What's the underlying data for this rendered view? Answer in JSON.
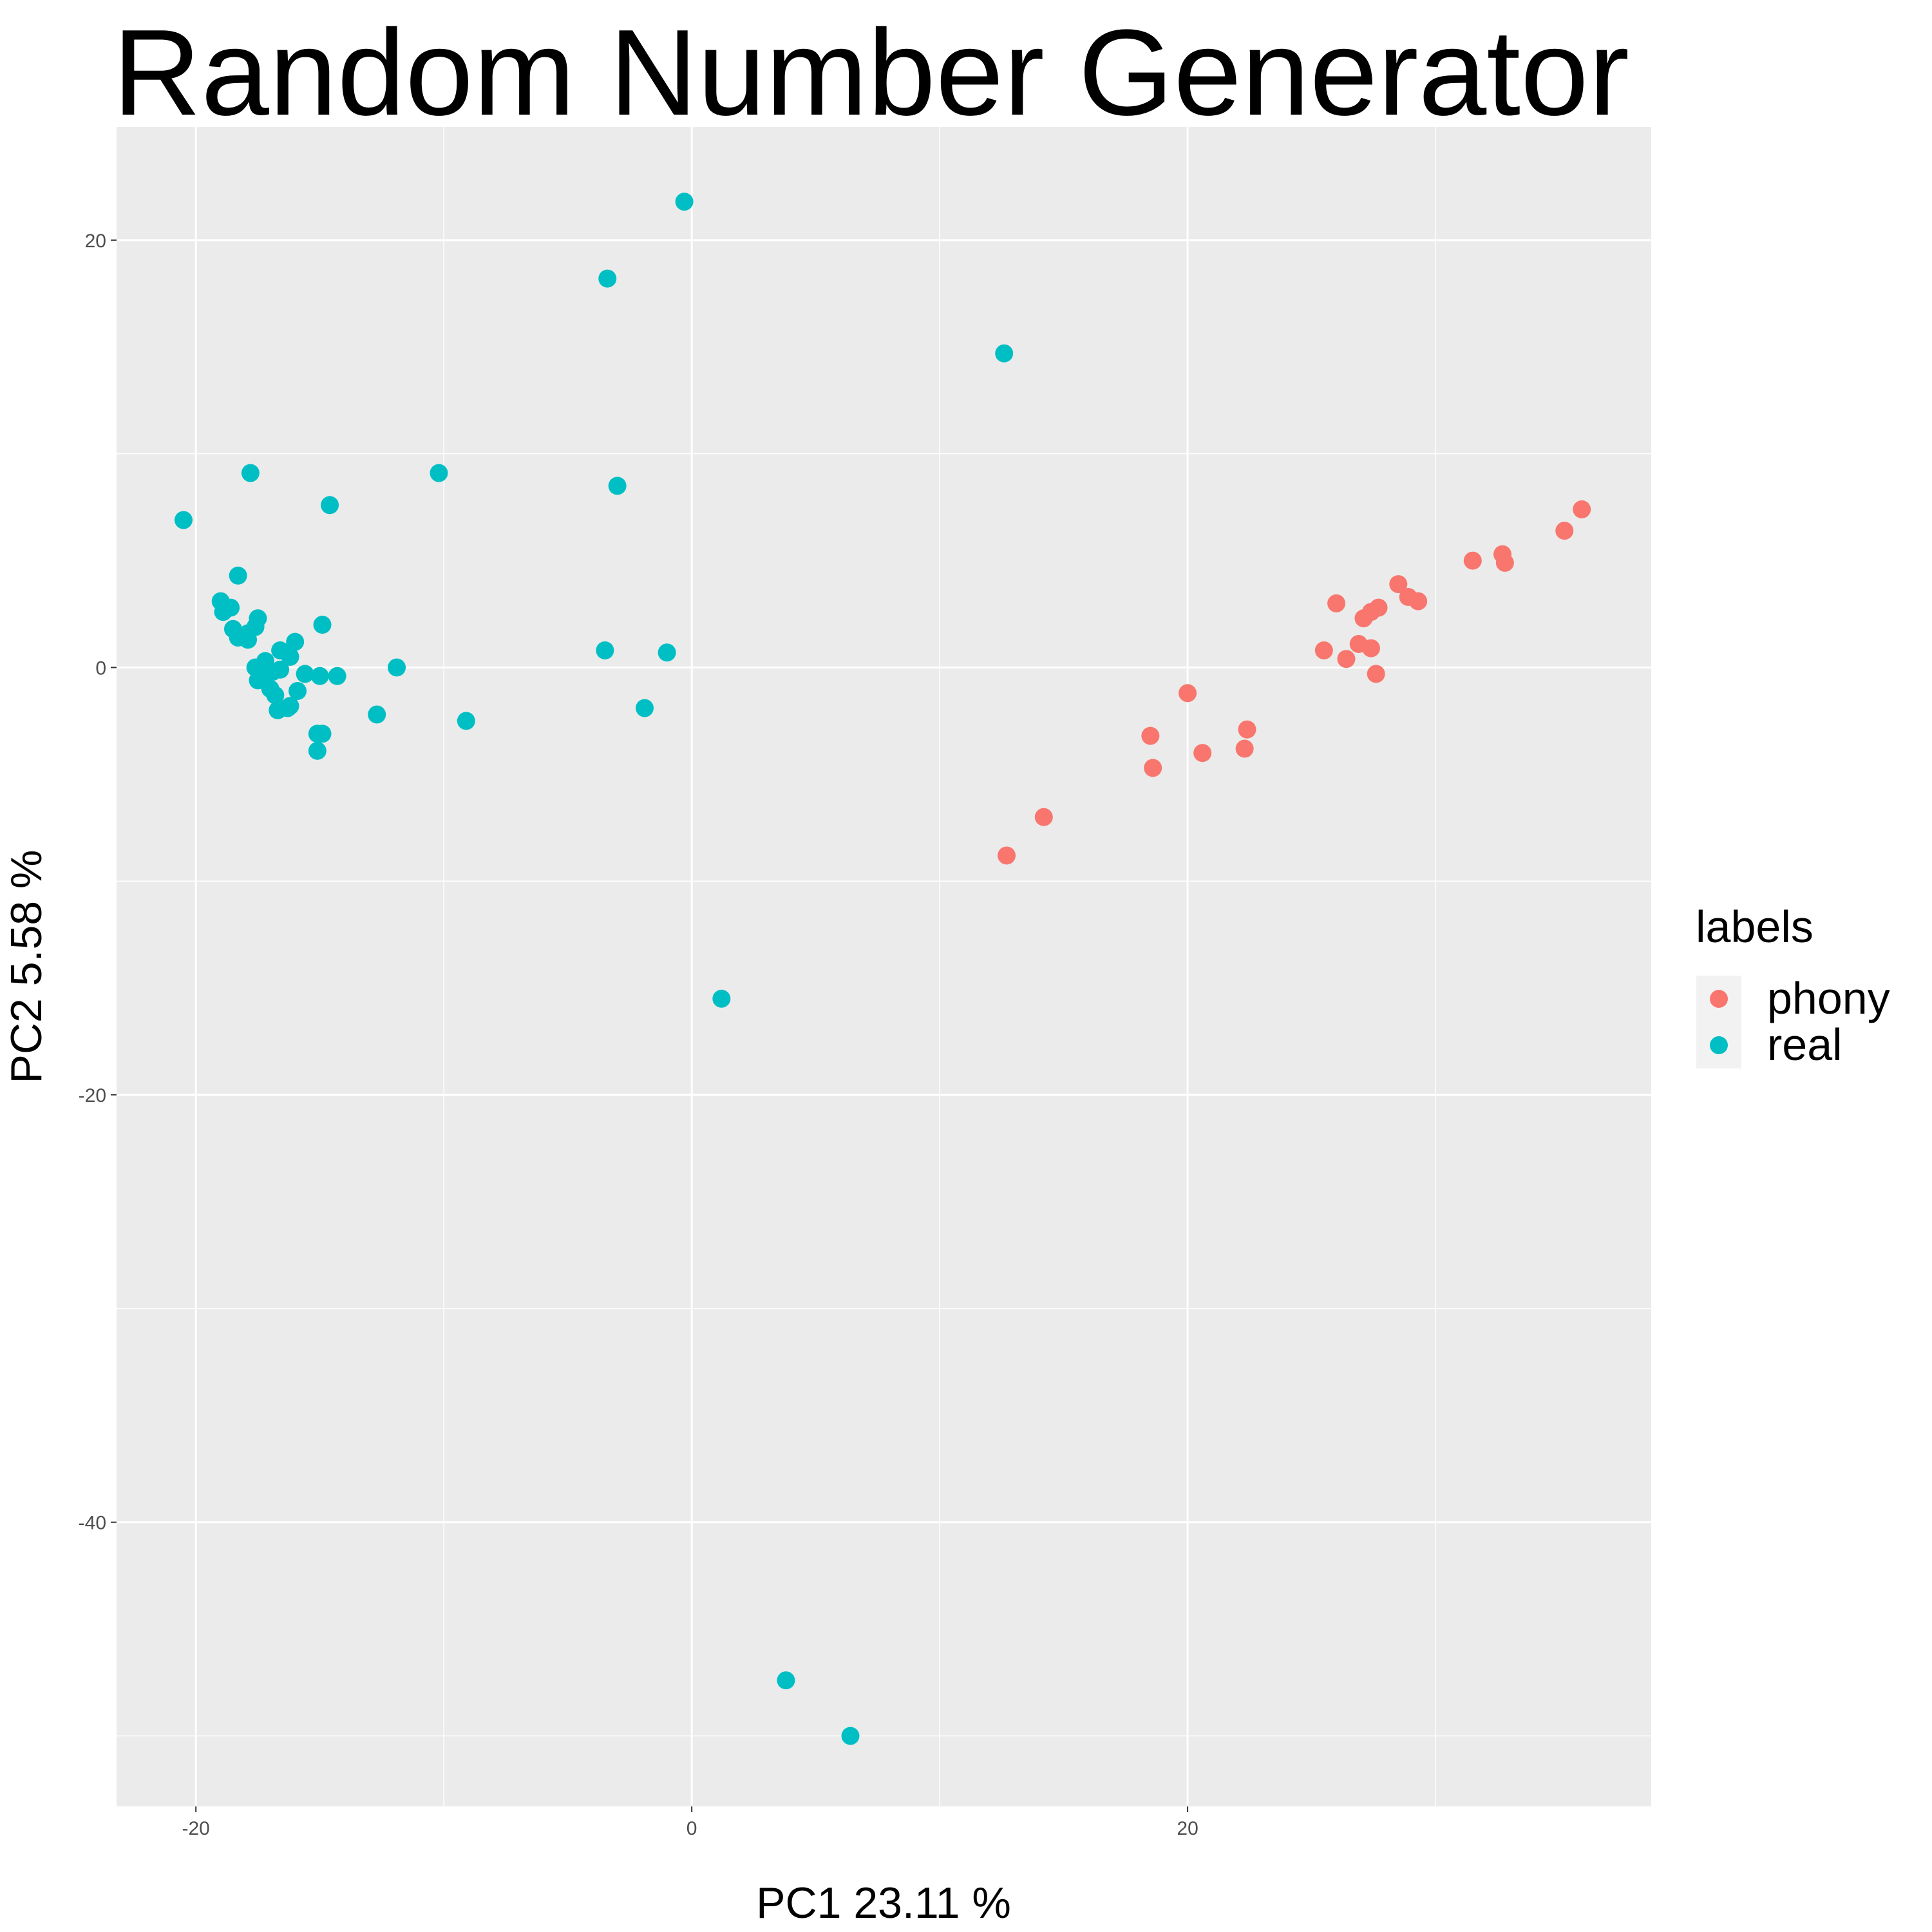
{
  "chart_data": {
    "type": "scatter",
    "title": "Random Number Generator",
    "xlabel": "PC1  23.11 %",
    "ylabel": "PC2  5.58 %",
    "xlim": [
      -23.2,
      38.7
    ],
    "ylim": [
      -53.3,
      25.3
    ],
    "x_ticks": [
      -20,
      0,
      20
    ],
    "y_ticks": [
      -40,
      -20,
      0,
      20
    ],
    "grid": true,
    "legend": {
      "title": "labels",
      "position": "right"
    },
    "series": [
      {
        "name": "phony",
        "color": "#F8766D",
        "points": [
          [
            12.7,
            -8.8
          ],
          [
            14.2,
            -7.0
          ],
          [
            18.5,
            -3.2
          ],
          [
            18.6,
            -4.7
          ],
          [
            20.0,
            -1.2
          ],
          [
            20.6,
            -4.0
          ],
          [
            22.3,
            -3.8
          ],
          [
            22.4,
            -2.9
          ],
          [
            25.5,
            0.8
          ],
          [
            26.0,
            3.0
          ],
          [
            26.4,
            0.4
          ],
          [
            26.9,
            1.1
          ],
          [
            27.1,
            2.3
          ],
          [
            27.4,
            2.6
          ],
          [
            27.4,
            0.9
          ],
          [
            27.6,
            -0.3
          ],
          [
            27.7,
            2.8
          ],
          [
            28.5,
            3.9
          ],
          [
            28.9,
            3.3
          ],
          [
            29.3,
            3.1
          ],
          [
            31.5,
            5.0
          ],
          [
            32.7,
            5.3
          ],
          [
            32.8,
            4.9
          ],
          [
            35.2,
            6.4
          ],
          [
            35.9,
            7.4
          ]
        ]
      },
      {
        "name": "real",
        "color": "#00BFC4",
        "points": [
          [
            -20.5,
            6.9
          ],
          [
            -19.0,
            3.1
          ],
          [
            -18.9,
            2.6
          ],
          [
            -18.6,
            2.8
          ],
          [
            -18.5,
            1.8
          ],
          [
            -18.3,
            4.3
          ],
          [
            -18.3,
            1.4
          ],
          [
            -17.9,
            1.6
          ],
          [
            -17.9,
            1.3
          ],
          [
            -17.8,
            9.1
          ],
          [
            -17.6,
            1.9
          ],
          [
            -17.5,
            2.3
          ],
          [
            -17.6,
            0.0
          ],
          [
            -17.5,
            -0.6
          ],
          [
            -17.2,
            0.3
          ],
          [
            -17.2,
            -0.2
          ],
          [
            -17.0,
            -1.0
          ],
          [
            -16.9,
            -0.2
          ],
          [
            -16.8,
            -1.3
          ],
          [
            -16.7,
            -2.0
          ],
          [
            -16.6,
            -0.1
          ],
          [
            -16.6,
            0.8
          ],
          [
            -16.3,
            -1.9
          ],
          [
            -16.2,
            0.5
          ],
          [
            -16.2,
            -1.8
          ],
          [
            -16.0,
            1.2
          ],
          [
            -15.9,
            -1.1
          ],
          [
            -15.6,
            -0.3
          ],
          [
            -15.1,
            -3.1
          ],
          [
            -15.1,
            -3.9
          ],
          [
            -15.0,
            -0.4
          ],
          [
            -14.9,
            2.0
          ],
          [
            -14.9,
            -3.1
          ],
          [
            -14.6,
            7.6
          ],
          [
            -14.3,
            -0.4
          ],
          [
            -12.7,
            -2.2
          ],
          [
            -11.9,
            0.0
          ],
          [
            -10.2,
            9.1
          ],
          [
            -9.1,
            -2.5
          ],
          [
            -3.5,
            0.8
          ],
          [
            -3.4,
            18.2
          ],
          [
            -3.0,
            8.5
          ],
          [
            -1.9,
            -1.9
          ],
          [
            -1.0,
            0.7
          ],
          [
            -0.3,
            21.8
          ],
          [
            1.2,
            -15.5
          ],
          [
            3.8,
            -47.4
          ],
          [
            6.4,
            -50.0
          ],
          [
            12.6,
            14.7
          ]
        ]
      }
    ]
  }
}
